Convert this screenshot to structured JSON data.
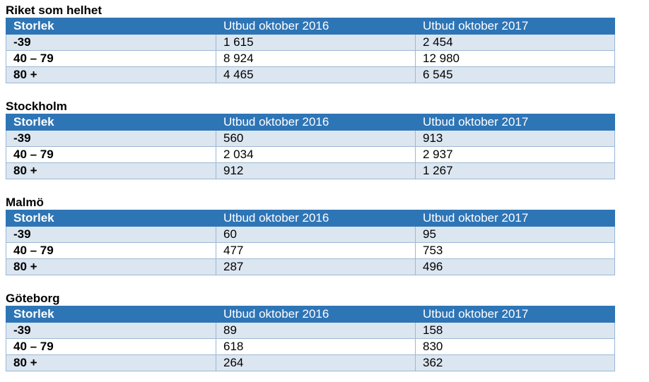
{
  "header_labels": {
    "col1": "Storlek",
    "col2": "Utbud oktober 2016",
    "col3": "Utbud oktober 2017"
  },
  "sections": [
    {
      "title": "Riket som helhet",
      "rows": [
        {
          "size": "-39",
          "oct2016": "1 615",
          "oct2017": "2 454"
        },
        {
          "size": "40 – 79",
          "oct2016": "8 924",
          "oct2017": "12 980"
        },
        {
          "size": "80 +",
          "oct2016": "4 465",
          "oct2017": "6 545"
        }
      ]
    },
    {
      "title": "Stockholm",
      "rows": [
        {
          "size": "-39",
          "oct2016": "560",
          "oct2017": "913"
        },
        {
          "size": "40 – 79",
          "oct2016": "2 034",
          "oct2017": "2 937"
        },
        {
          "size": "80 +",
          "oct2016": "912",
          "oct2017": "1 267"
        }
      ]
    },
    {
      "title": "Malmö",
      "rows": [
        {
          "size": "-39",
          "oct2016": "60",
          "oct2017": "95"
        },
        {
          "size": "40 – 79",
          "oct2016": "477",
          "oct2017": "753"
        },
        {
          "size": "80 +",
          "oct2016": "287",
          "oct2017": "496"
        }
      ]
    },
    {
      "title": "Göteborg",
      "rows": [
        {
          "size": "-39",
          "oct2016": "89",
          "oct2017": "158"
        },
        {
          "size": "40 – 79",
          "oct2016": "618",
          "oct2017": "830"
        },
        {
          "size": "80 +",
          "oct2016": "264",
          "oct2017": "362"
        }
      ]
    }
  ],
  "colors": {
    "header_bg": "#2e75b6",
    "header_text": "#ffffff",
    "shaded_row_bg": "#dce6f1",
    "plain_row_bg": "#ffffff",
    "border": "#9bb7d4"
  }
}
